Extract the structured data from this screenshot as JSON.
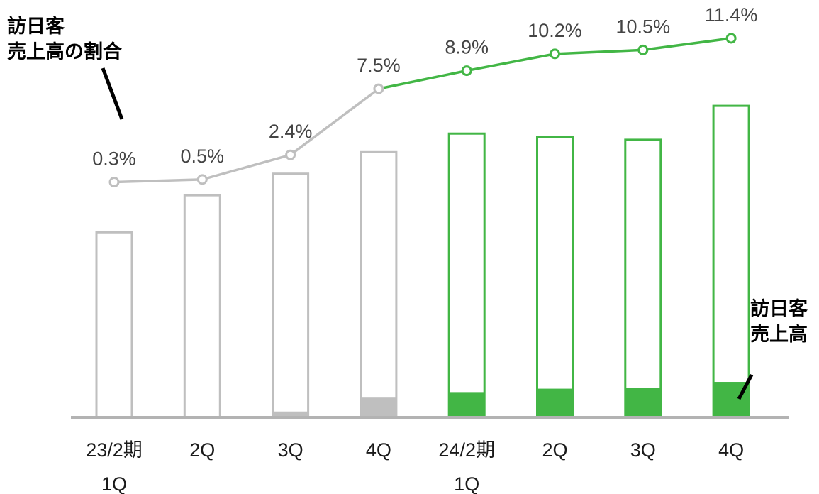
{
  "annotations": {
    "line_label_1": "訪日客",
    "line_label_2": "売上高の割合",
    "bar_label_1": "訪日客",
    "bar_label_2": "売上高"
  },
  "colors": {
    "gray": "#bfbfbf",
    "green": "#42b645",
    "axis": "#b3b3b3"
  },
  "chart_data": {
    "type": "bar",
    "categories": [
      [
        "23/2期",
        "1Q"
      ],
      [
        "2Q"
      ],
      [
        "3Q"
      ],
      [
        "4Q"
      ],
      [
        "24/2期",
        "1Q"
      ],
      [
        "2Q"
      ],
      [
        "3Q"
      ],
      [
        "4Q"
      ]
    ],
    "series": [
      {
        "name": "売上高",
        "kind": "bar-outline",
        "values": [
          60,
          72,
          79,
          86,
          92,
          91,
          90,
          101
        ]
      },
      {
        "name": "訪日客売上高",
        "kind": "bar-filled",
        "values": [
          0.2,
          0.4,
          1.9,
          6.4,
          8.2,
          9.3,
          9.5,
          11.5
        ]
      },
      {
        "name": "訪日客売上高の割合",
        "kind": "line",
        "unit": "%",
        "values": [
          0.3,
          0.5,
          2.4,
          7.5,
          8.9,
          10.2,
          10.5,
          11.4
        ],
        "labels": [
          "0.3%",
          "0.5%",
          "2.4%",
          "7.5%",
          "8.9%",
          "10.2%",
          "10.5%",
          "11.4%"
        ]
      }
    ],
    "highlight_from_index": 4,
    "ylim": [
      0,
      110
    ]
  }
}
